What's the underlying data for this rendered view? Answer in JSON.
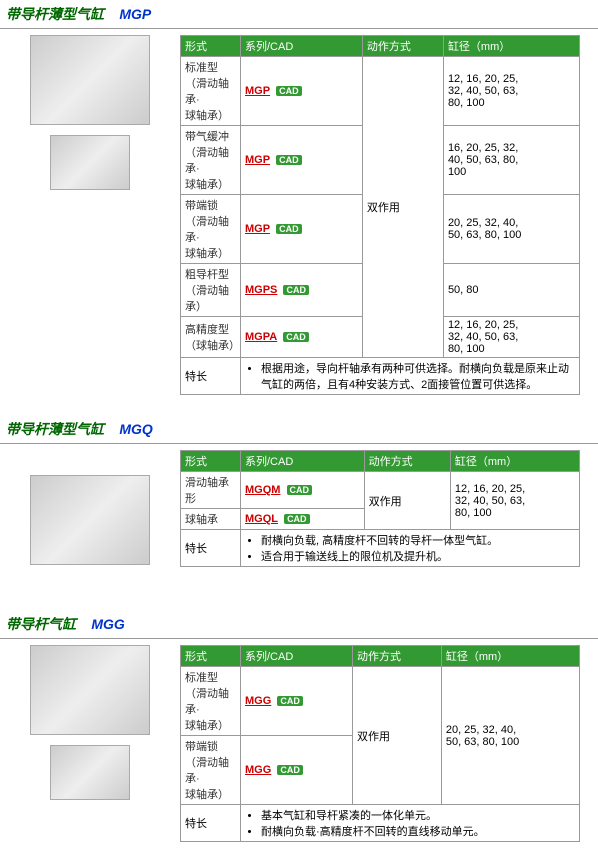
{
  "headers": {
    "type": "形式",
    "series": "系列/CAD",
    "action": "动作方式",
    "bore": "缸径（mm）",
    "feature": "特长"
  },
  "cad_badge": "CAD",
  "sections": [
    {
      "title": "带导杆薄型气缸",
      "code": "MGP",
      "action": "双作用",
      "rows": [
        {
          "type": "标准型\n（滑动轴承·\n球轴承）",
          "series": "MGP",
          "bore": "12, 16, 20, 25,\n32, 40, 50, 63,\n80, 100"
        },
        {
          "type": "带气缓冲\n（滑动轴承·\n球轴承）",
          "series": "MGP",
          "bore": "16, 20, 25, 32,\n40, 50, 63, 80,\n100"
        },
        {
          "type": "带端锁\n（滑动轴承·\n球轴承）",
          "series": "MGP",
          "bore": "20, 25, 32, 40,\n50, 63, 80, 100"
        },
        {
          "type": "粗导杆型\n（滑动轴承）",
          "series": "MGPS",
          "bore": "50, 80"
        },
        {
          "type": "高精度型\n（球轴承）",
          "series": "MGPA",
          "bore": "12, 16, 20, 25,\n32, 40, 50, 63,\n80, 100"
        }
      ],
      "features": [
        "根据用途，导向杆轴承有两种可供选择。耐横向负载是原来止动气缸的两倍，且有4种安装方式、2面接管位置可供选择。"
      ],
      "images": 2
    },
    {
      "title": "带导杆薄型气缸",
      "code": "MGQ",
      "action": "双作用",
      "rows": [
        {
          "type": "滑动轴承形",
          "series": "MGQM",
          "bore_rowspan": 2,
          "bore": "12, 16, 20, 25,\n32, 40, 50, 63,\n80, 100"
        },
        {
          "type": "球轴承",
          "series": "MGQL"
        }
      ],
      "features": [
        "耐横向负载, 高精度杆不回转的导杆一体型气缸。",
        "适合用于输送线上的限位机及提升机。"
      ],
      "images": 1
    },
    {
      "title": "带导杆气缸",
      "code": "MGG",
      "action": "双作用",
      "rows": [
        {
          "type": "标准型\n（滑动轴承·\n球轴承）",
          "series": "MGG",
          "bore_rowspan": 2,
          "bore": "20, 25, 32, 40,\n50, 63, 80, 100"
        },
        {
          "type": "带端锁\n（滑动轴承·\n球轴承）",
          "series": "MGG"
        }
      ],
      "features": [
        "基本气缸和导杆紧凑的一体化单元。",
        "耐横向负载·高精度杆不回转的直线移动单元。"
      ],
      "images": 2
    }
  ]
}
